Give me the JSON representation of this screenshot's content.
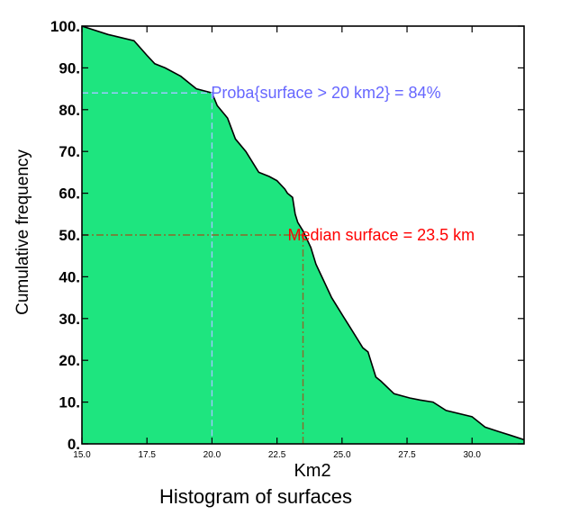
{
  "chart_data": {
    "type": "area",
    "title": "Histogram of surfaces",
    "xlabel": "Km2",
    "ylabel": "Cumulative frequency",
    "xlim": [
      15.0,
      32.0
    ],
    "ylim": [
      0,
      100
    ],
    "x_ticks": [
      {
        "value": 15.0,
        "label": "15.0"
      },
      {
        "value": 17.5,
        "label": "17.5"
      },
      {
        "value": 20.0,
        "label": "20.0"
      },
      {
        "value": 22.5,
        "label": "22.5"
      },
      {
        "value": 25.0,
        "label": "25.0"
      },
      {
        "value": 27.5,
        "label": "27.5"
      },
      {
        "value": 30.0,
        "label": "30.0"
      }
    ],
    "y_ticks": [
      {
        "value": 0,
        "label": "0."
      },
      {
        "value": 10,
        "label": "10."
      },
      {
        "value": 20,
        "label": "20."
      },
      {
        "value": 30,
        "label": "30."
      },
      {
        "value": 40,
        "label": "40."
      },
      {
        "value": 50,
        "label": "50."
      },
      {
        "value": 60,
        "label": "60."
      },
      {
        "value": 70,
        "label": "70."
      },
      {
        "value": 80,
        "label": "80."
      },
      {
        "value": 90,
        "label": "90."
      },
      {
        "value": 100,
        "label": "100."
      }
    ],
    "fill_color": "#1ee57f",
    "line_color": "#000000",
    "series": [
      {
        "x": [
          15.0,
          16.0,
          17.0,
          17.5,
          17.8,
          18.2,
          18.8,
          19.2,
          19.4,
          19.7,
          20.0,
          20.2,
          20.6,
          20.9,
          21.3,
          21.6,
          21.8,
          22.2,
          22.5,
          22.8,
          22.9,
          23.1,
          23.2,
          23.3,
          23.5,
          23.8,
          24.0,
          24.3,
          24.6,
          25.0,
          25.3,
          25.6,
          25.8,
          26.0,
          26.1,
          26.3,
          26.5,
          27.0,
          27.6,
          28.0,
          28.5,
          29.0,
          30.0,
          30.3,
          30.5,
          31.0,
          31.5,
          32.0
        ],
        "y": [
          100,
          98,
          96.5,
          93,
          91,
          90,
          88,
          86,
          85,
          84.5,
          84,
          81,
          78,
          73,
          70,
          67,
          65,
          64,
          63,
          61,
          60,
          59,
          55,
          53,
          51,
          47,
          43,
          39,
          35,
          31,
          28,
          25,
          23,
          22,
          20,
          16,
          15,
          12,
          11,
          10.5,
          10,
          8,
          6.5,
          5,
          4,
          3,
          2,
          1
        ]
      }
    ],
    "annotations": [
      {
        "text": "Proba{surface > 20 km2} = 84%",
        "x": 20.0,
        "y": 84,
        "color": "#6666ff"
      },
      {
        "text": "Median surface = 23.5 km",
        "x": 23.5,
        "y": 50,
        "color": "#ff0000"
      }
    ],
    "grid": false,
    "legend": "none"
  }
}
